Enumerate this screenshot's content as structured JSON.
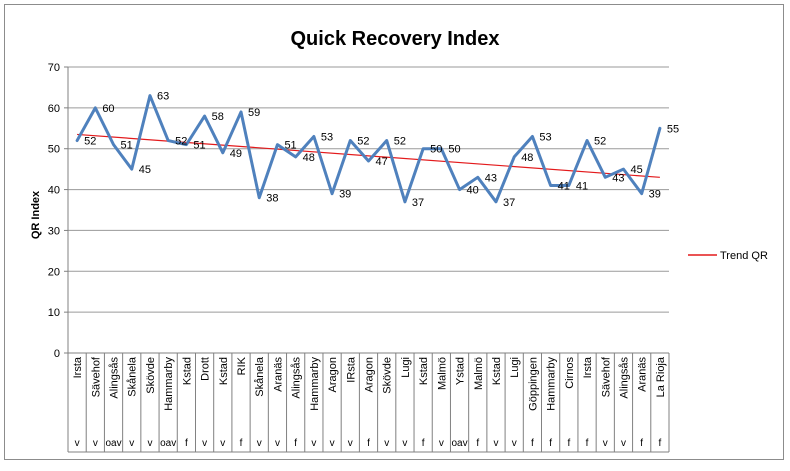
{
  "chart_data": {
    "type": "line",
    "title": "Quick Recovery Index",
    "xlabel": "",
    "ylabel": "QR Index",
    "ylim": [
      0,
      70
    ],
    "y_ticks": [
      0,
      10,
      20,
      30,
      40,
      50,
      60,
      70
    ],
    "grid": true,
    "legend_position": "right",
    "categories": [
      "Irsta",
      "Sävehof",
      "Alingsås",
      "Skånela",
      "Skövde",
      "Hammarby",
      "Kstad",
      "Drott",
      "Kstad",
      "RIK",
      "Skånela",
      "Aranäs",
      "Alingsås",
      "Hammarby",
      "Aragon",
      "IRsta",
      "Aragon",
      "Skövde",
      "Lugi",
      "Kstad",
      "Malmö",
      "Ystad",
      "Malmö",
      "Kstad",
      "Lugi",
      "Göppingen",
      "Hammarby",
      "Cirnos",
      "Irsta",
      "Sävehof",
      "Alingsås",
      "Aranäs",
      "La Rioja"
    ],
    "sub_categories": [
      "v",
      "v",
      "oav",
      "v",
      "v",
      "oav",
      "f",
      "v",
      "v",
      "f",
      "v",
      "v",
      "f",
      "v",
      "v",
      "v",
      "f",
      "v",
      "v",
      "f",
      "v",
      "oav",
      "f",
      "v",
      "v",
      "f",
      "f",
      "f",
      "f",
      "v",
      "v",
      "f",
      "f"
    ],
    "series": [
      {
        "values": [
          52,
          60,
          51,
          45,
          63,
          52,
          51,
          58,
          49,
          59,
          38,
          51,
          48,
          53,
          39,
          52,
          47,
          52,
          37,
          50,
          50,
          40,
          43,
          37,
          48,
          53,
          41,
          41,
          52,
          43,
          45,
          39,
          55
        ],
        "labels": [
          "52",
          "60",
          "51",
          "45",
          "63",
          "52",
          "51",
          "58",
          "49",
          "59",
          "38",
          "51",
          "48",
          "53",
          "39",
          "52",
          "47",
          "52",
          "37",
          "50",
          "50",
          "40",
          "43",
          "37",
          "48",
          "53",
          "41",
          "41",
          "52",
          "43",
          "45",
          "39",
          "55"
        ],
        "color": "#4f81bd"
      },
      {
        "name": "Trend QR",
        "type": "linear-trend",
        "start": 53.5,
        "end": 43.0,
        "color": "#e31a1c"
      }
    ]
  }
}
